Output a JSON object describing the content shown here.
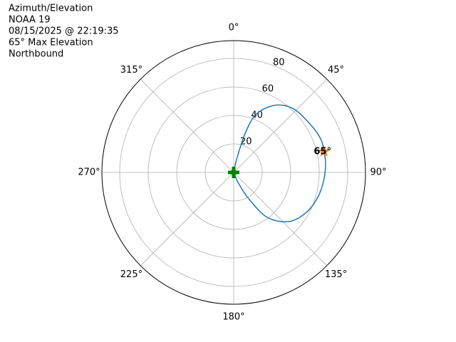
{
  "chart_data": {
    "type": "polar",
    "title_lines": [
      "Azimuth/Elevation",
      "NOAA 19",
      "08/15/2025 @ 22:19:35",
      "65° Max Elevation",
      "Northbound"
    ],
    "theta_zero": "north",
    "theta_direction": "clockwise",
    "rlim": [
      0,
      92.5
    ],
    "rticks": [
      20,
      40,
      60,
      80
    ],
    "thetaticks": [
      {
        "value": 0,
        "label": "0°"
      },
      {
        "value": 45,
        "label": "45°"
      },
      {
        "value": 90,
        "label": "90°"
      },
      {
        "value": 135,
        "label": "135°"
      },
      {
        "value": 180,
        "label": "180°"
      },
      {
        "value": 225,
        "label": "225°"
      },
      {
        "value": 270,
        "label": "270°"
      },
      {
        "value": 315,
        "label": "315°"
      }
    ],
    "grid": true,
    "series": [
      {
        "color": "#1f77b4",
        "x": [
          10,
          13,
          16.6,
          21.3,
          31.2,
          42.3,
          55.3,
          69,
          82.5,
          93.6,
          105.5,
          118.8,
          131.9,
          143.3,
          150,
          156,
          160
        ],
        "values": [
          0,
          11,
          29.7,
          44,
          55,
          61,
          63,
          65.4,
          64.9,
          63.6,
          61.7,
          58.2,
          51.7,
          39.3,
          22,
          8.7,
          0
        ]
      }
    ],
    "start": {
      "azimuth": 10,
      "elevation": 0,
      "color": "#008000"
    },
    "max": {
      "azimuth": 77,
      "elevation": 65,
      "label": "65°",
      "color": "#ff7f0e"
    }
  }
}
